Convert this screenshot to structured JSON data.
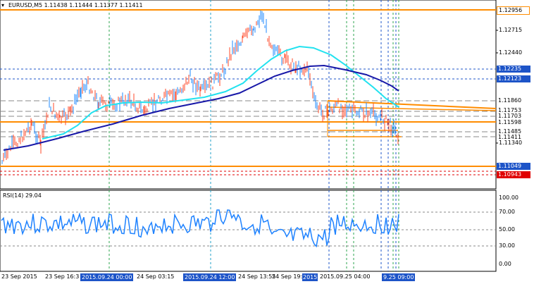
{
  "header": {
    "title": "EURUSD,M5  1.11438 1.11444 1.11377 1.11411"
  },
  "price_axis": {
    "ticks": [
      "1.12715",
      "1.12440",
      "1.11340"
    ],
    "badges": [
      {
        "label": "1.12956",
        "style": "orange-outline"
      },
      {
        "label": "1.12235",
        "color": "#1d54c8"
      },
      {
        "label": "1.12123",
        "color": "#1d54c8"
      },
      {
        "label": "1.11860",
        "style": "plain"
      },
      {
        "label": "1.11753",
        "style": "plain"
      },
      {
        "label": "1.11703",
        "style": "plain"
      },
      {
        "label": "1.11598",
        "style": "plain"
      },
      {
        "label": "1.11485",
        "style": "plain"
      },
      {
        "label": "1.11411",
        "style": "plain"
      },
      {
        "label": "1.11049",
        "color": "#1d54c8"
      },
      {
        "label": "1.10943",
        "color": "#e00000"
      }
    ]
  },
  "rsi": {
    "title": "RSI(14) 29.04",
    "levels": [
      "70.00",
      "50.00",
      "30.00"
    ],
    "ticks": [
      "100.00",
      "0.00"
    ]
  },
  "time_axis": {
    "labels": [
      "23 Sep 2015",
      "23 Sep 16:3",
      "24 Sep 03:15",
      "24 Sep 13:55",
      "24 Sep 19:",
      "2015.09.25 04:00"
    ],
    "badges": [
      "2015.09.24 00:00",
      "2015.09.24 12:00",
      "2015",
      "9.25 09:00"
    ]
  },
  "colors": {
    "fast_ma": "#22e2ef",
    "slow_ma": "#1818a8",
    "level_orange": "#ff8c00",
    "rsi_line": "#1e82ff",
    "candle_up": "#1e88ff",
    "candle_down": "#ff4a2a"
  }
}
